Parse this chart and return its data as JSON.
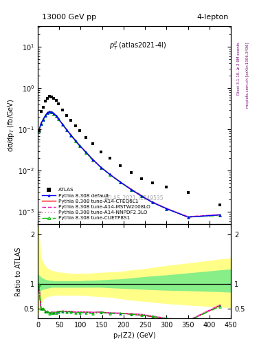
{
  "title_left": "13000 GeV pp",
  "title_right": "4-lepton",
  "annotation": "$p_T^{ll}$ (atlas2021-4l)",
  "watermark": "ATLAS_2021_I1849535",
  "right_label_top": "Rivet 3.1.10, ≥ 2.9M events",
  "right_label_bot": "mcplots.cern.ch [arXiv:1306.3436]",
  "ylabel_main": "dσ/dp$_T$ (fb/GeV)",
  "ylabel_ratio": "Ratio to ATLAS",
  "xlabel": "p$_T$(Z2) (GeV)",
  "xlim": [
    0,
    450
  ],
  "ylim_main_log": [
    -3.3,
    1.5
  ],
  "ylim_ratio": [
    0.3,
    2.2
  ],
  "ratio_yticks": [
    0.5,
    1.0,
    2.0
  ],
  "atlas_x": [
    2.5,
    7.5,
    12.5,
    17.5,
    22.5,
    27.5,
    32.5,
    37.5,
    42.5,
    47.5,
    57.5,
    67.5,
    77.5,
    87.5,
    97.5,
    112.5,
    127.5,
    147.5,
    167.5,
    192.5,
    217.5,
    242.5,
    267.5,
    300,
    350,
    425
  ],
  "atlas_y": [
    0.095,
    0.28,
    0.35,
    0.48,
    0.58,
    0.65,
    0.62,
    0.58,
    0.5,
    0.42,
    0.3,
    0.22,
    0.165,
    0.125,
    0.095,
    0.065,
    0.045,
    0.028,
    0.02,
    0.013,
    0.009,
    0.0065,
    0.005,
    0.004,
    0.003,
    0.0015
  ],
  "mc_x": [
    2.5,
    7.5,
    12.5,
    17.5,
    22.5,
    27.5,
    32.5,
    37.5,
    42.5,
    47.5,
    57.5,
    67.5,
    77.5,
    87.5,
    97.5,
    112.5,
    127.5,
    147.5,
    167.5,
    192.5,
    217.5,
    242.5,
    267.5,
    300,
    350,
    425
  ],
  "mc_default_y": [
    0.093,
    0.14,
    0.175,
    0.215,
    0.255,
    0.27,
    0.265,
    0.245,
    0.215,
    0.185,
    0.135,
    0.098,
    0.073,
    0.054,
    0.041,
    0.028,
    0.019,
    0.012,
    0.0082,
    0.0053,
    0.0035,
    0.0024,
    0.0017,
    0.0012,
    0.00075,
    0.00085
  ],
  "mc_cteq_y": [
    0.093,
    0.14,
    0.175,
    0.215,
    0.255,
    0.27,
    0.265,
    0.245,
    0.215,
    0.185,
    0.135,
    0.098,
    0.073,
    0.054,
    0.041,
    0.028,
    0.019,
    0.012,
    0.0082,
    0.0053,
    0.0035,
    0.0024,
    0.0017,
    0.0012,
    0.00075,
    0.00085
  ],
  "mc_mstw_y": [
    0.093,
    0.14,
    0.175,
    0.215,
    0.255,
    0.27,
    0.265,
    0.245,
    0.215,
    0.185,
    0.135,
    0.098,
    0.073,
    0.054,
    0.041,
    0.028,
    0.019,
    0.012,
    0.0082,
    0.0053,
    0.0036,
    0.0025,
    0.00175,
    0.00122,
    0.00077,
    0.00086
  ],
  "mc_nnpdf_y": [
    0.093,
    0.14,
    0.175,
    0.215,
    0.255,
    0.27,
    0.265,
    0.245,
    0.215,
    0.185,
    0.135,
    0.098,
    0.073,
    0.054,
    0.041,
    0.028,
    0.019,
    0.012,
    0.0082,
    0.0053,
    0.0036,
    0.00248,
    0.00176,
    0.00123,
    0.00077,
    0.00087
  ],
  "mc_cuetp_y": [
    0.093,
    0.14,
    0.175,
    0.215,
    0.255,
    0.265,
    0.26,
    0.24,
    0.21,
    0.18,
    0.132,
    0.096,
    0.071,
    0.052,
    0.04,
    0.027,
    0.018,
    0.012,
    0.0081,
    0.0052,
    0.0035,
    0.0024,
    0.0017,
    0.0012,
    0.00075,
    0.00082
  ],
  "band_x": [
    0,
    2.5,
    7.5,
    12.5,
    17.5,
    22.5,
    27.5,
    32.5,
    37.5,
    42.5,
    47.5,
    57.5,
    67.5,
    77.5,
    87.5,
    97.5,
    112.5,
    127.5,
    147.5,
    167.5,
    192.5,
    217.5,
    242.5,
    267.5,
    300,
    350,
    425,
    450
  ],
  "band_green_upper": [
    1.2,
    1.18,
    1.14,
    1.11,
    1.09,
    1.08,
    1.07,
    1.07,
    1.06,
    1.06,
    1.06,
    1.06,
    1.06,
    1.06,
    1.06,
    1.06,
    1.07,
    1.07,
    1.08,
    1.09,
    1.1,
    1.12,
    1.14,
    1.16,
    1.18,
    1.22,
    1.28,
    1.3
  ],
  "band_green_lower": [
    0.8,
    0.84,
    0.87,
    0.89,
    0.9,
    0.91,
    0.92,
    0.93,
    0.93,
    0.93,
    0.93,
    0.93,
    0.93,
    0.93,
    0.93,
    0.93,
    0.93,
    0.93,
    0.93,
    0.92,
    0.91,
    0.9,
    0.89,
    0.88,
    0.87,
    0.86,
    0.84,
    0.83
  ],
  "band_yellow_upper": [
    2.2,
    2.1,
    1.55,
    1.42,
    1.37,
    1.32,
    1.29,
    1.27,
    1.26,
    1.25,
    1.24,
    1.23,
    1.22,
    1.21,
    1.21,
    1.21,
    1.21,
    1.22,
    1.23,
    1.24,
    1.25,
    1.28,
    1.3,
    1.33,
    1.37,
    1.42,
    1.5,
    1.52
  ],
  "band_yellow_lower": [
    0.35,
    0.42,
    0.6,
    0.68,
    0.72,
    0.74,
    0.75,
    0.76,
    0.77,
    0.77,
    0.77,
    0.77,
    0.77,
    0.77,
    0.77,
    0.77,
    0.76,
    0.75,
    0.74,
    0.73,
    0.7,
    0.67,
    0.65,
    0.63,
    0.6,
    0.57,
    0.53,
    0.52
  ],
  "colors": {
    "atlas": "#000000",
    "default": "#0000ff",
    "cteq": "#ff0000",
    "mstw": "#ee00aa",
    "nnpdf": "#ff88cc",
    "cuetp": "#00bb00",
    "band_green": "#88ee88",
    "band_yellow": "#ffff88"
  }
}
